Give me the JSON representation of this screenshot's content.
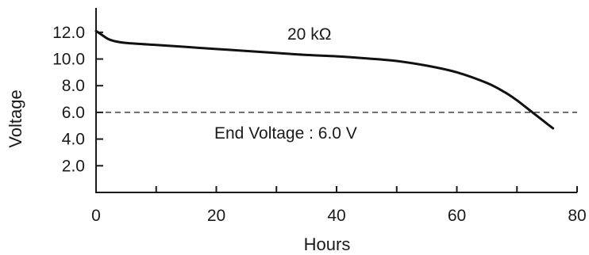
{
  "chart_data": {
    "type": "line",
    "title": "",
    "xlabel": "Hours",
    "ylabel": "Voltage",
    "xlim": [
      0,
      80
    ],
    "ylim": [
      0,
      14
    ],
    "x_ticks": [
      0,
      10,
      20,
      30,
      40,
      50,
      60,
      70,
      80
    ],
    "x_tick_labels": [
      {
        "value": 0,
        "label": "0"
      },
      {
        "value": 20,
        "label": "20"
      },
      {
        "value": 40,
        "label": "40"
      },
      {
        "value": 60,
        "label": "60"
      },
      {
        "value": 80,
        "label": "80"
      }
    ],
    "y_ticks": [
      {
        "value": 2,
        "label": "2.0"
      },
      {
        "value": 4,
        "label": "4.0"
      },
      {
        "value": 6,
        "label": "6.0"
      },
      {
        "value": 8,
        "label": "8.0"
      },
      {
        "value": 10,
        "label": "10.0"
      },
      {
        "value": 12,
        "label": "12.0"
      }
    ],
    "grid": false,
    "series": [
      {
        "name": "20 kΩ",
        "x": [
          0,
          1,
          2,
          3,
          5,
          10,
          15,
          20,
          25,
          30,
          35,
          40,
          45,
          50,
          55,
          60,
          65,
          68,
          70,
          72,
          74,
          76
        ],
        "y": [
          12.1,
          11.8,
          11.5,
          11.35,
          11.2,
          11.05,
          10.9,
          10.75,
          10.6,
          10.45,
          10.3,
          10.2,
          10.05,
          9.85,
          9.5,
          9.0,
          8.2,
          7.5,
          6.9,
          6.2,
          5.5,
          4.8
        ]
      }
    ],
    "reference_line": {
      "y": 6.0,
      "style": "dashed"
    },
    "annotations": {
      "series_label": "20 kΩ",
      "end_voltage": "End Voltage : 6.0 V"
    }
  }
}
